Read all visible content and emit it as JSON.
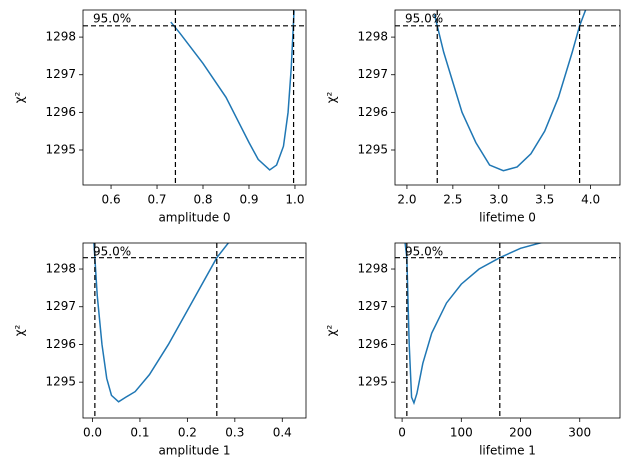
{
  "chart_data": [
    {
      "type": "line",
      "xlabel": "amplitude 0",
      "ylabel": "χ²",
      "annotation": "95.0%",
      "x": [
        0.73,
        0.75,
        0.8,
        0.85,
        0.9,
        0.92,
        0.945,
        0.96,
        0.975,
        0.985,
        0.992,
        0.998
      ],
      "series": [
        {
          "color": "#1f77b4",
          "values": [
            1298.4,
            1298.1,
            1297.3,
            1296.4,
            1295.2,
            1294.75,
            1294.47,
            1294.6,
            1295.1,
            1296.0,
            1297.2,
            1298.7
          ]
        }
      ],
      "hlines": [
        1298.3
      ],
      "vlines": [
        0.74,
        0.997
      ],
      "xlim": [
        0.539,
        1.024
      ],
      "ylim": [
        1294.07,
        1298.72
      ],
      "xticks": [
        0.6,
        0.7,
        0.8,
        0.9,
        {
          "value": 1.0,
          "label": "1.0"
        }
      ],
      "yticks": [
        1295,
        1296,
        1297,
        1298
      ]
    },
    {
      "type": "line",
      "xlabel": "lifetime 0",
      "ylabel": "χ²",
      "annotation": "95.0%",
      "x": [
        2.3,
        2.4,
        2.5,
        2.6,
        2.75,
        2.9,
        3.05,
        3.2,
        3.35,
        3.5,
        3.65,
        3.8,
        3.88,
        3.95
      ],
      "series": [
        {
          "color": "#1f77b4",
          "values": [
            1298.6,
            1297.6,
            1296.8,
            1296.0,
            1295.2,
            1294.6,
            1294.45,
            1294.55,
            1294.9,
            1295.5,
            1296.4,
            1297.6,
            1298.3,
            1298.75
          ]
        }
      ],
      "hlines": [
        1298.3
      ],
      "vlines": [
        2.33,
        3.88
      ],
      "xlim": [
        1.87,
        4.32
      ],
      "ylim": [
        1294.07,
        1298.72
      ],
      "xticks": [
        {
          "value": 2.0,
          "label": "2.0"
        },
        2.5,
        {
          "value": 3.0,
          "label": "3.0"
        },
        3.5,
        {
          "value": 4.0,
          "label": "4.0"
        }
      ],
      "yticks": [
        1295,
        1296,
        1297,
        1298
      ]
    },
    {
      "type": "line",
      "xlabel": "amplitude 1",
      "ylabel": "χ²",
      "annotation": "95.0%",
      "x": [
        0.003,
        0.01,
        0.02,
        0.03,
        0.04,
        0.055,
        0.07,
        0.09,
        0.12,
        0.16,
        0.2,
        0.262,
        0.29
      ],
      "series": [
        {
          "color": "#1f77b4",
          "values": [
            1298.7,
            1297.3,
            1296.0,
            1295.1,
            1294.65,
            1294.48,
            1294.6,
            1294.75,
            1295.2,
            1296.0,
            1296.9,
            1298.3,
            1298.75
          ]
        }
      ],
      "hlines": [
        1298.3
      ],
      "vlines": [
        0.005,
        0.262
      ],
      "xlim": [
        -0.02,
        0.45
      ],
      "ylim": [
        1294.05,
        1298.69
      ],
      "xticks": [
        {
          "value": 0,
          "label": "0.0"
        },
        0.1,
        0.2,
        0.3,
        0.4
      ],
      "yticks": [
        1295,
        1296,
        1297,
        1298
      ]
    },
    {
      "type": "line",
      "xlabel": "lifetime 1",
      "ylabel": "χ²",
      "annotation": "95.0%",
      "x": [
        5,
        8,
        12,
        16,
        20,
        25,
        35,
        50,
        75,
        100,
        130,
        165,
        200,
        240
      ],
      "series": [
        {
          "color": "#1f77b4",
          "values": [
            1298.7,
            1298.3,
            1296.0,
            1294.6,
            1294.45,
            1294.7,
            1295.5,
            1296.3,
            1297.1,
            1297.6,
            1298.0,
            1298.3,
            1298.55,
            1298.72
          ]
        }
      ],
      "hlines": [
        1298.3
      ],
      "vlines": [
        8,
        165
      ],
      "xlim": [
        -12,
        368
      ],
      "ylim": [
        1294.05,
        1298.69
      ],
      "xticks": [
        0,
        100,
        200,
        300
      ],
      "yticks": [
        1295,
        1296,
        1297,
        1298
      ]
    }
  ]
}
